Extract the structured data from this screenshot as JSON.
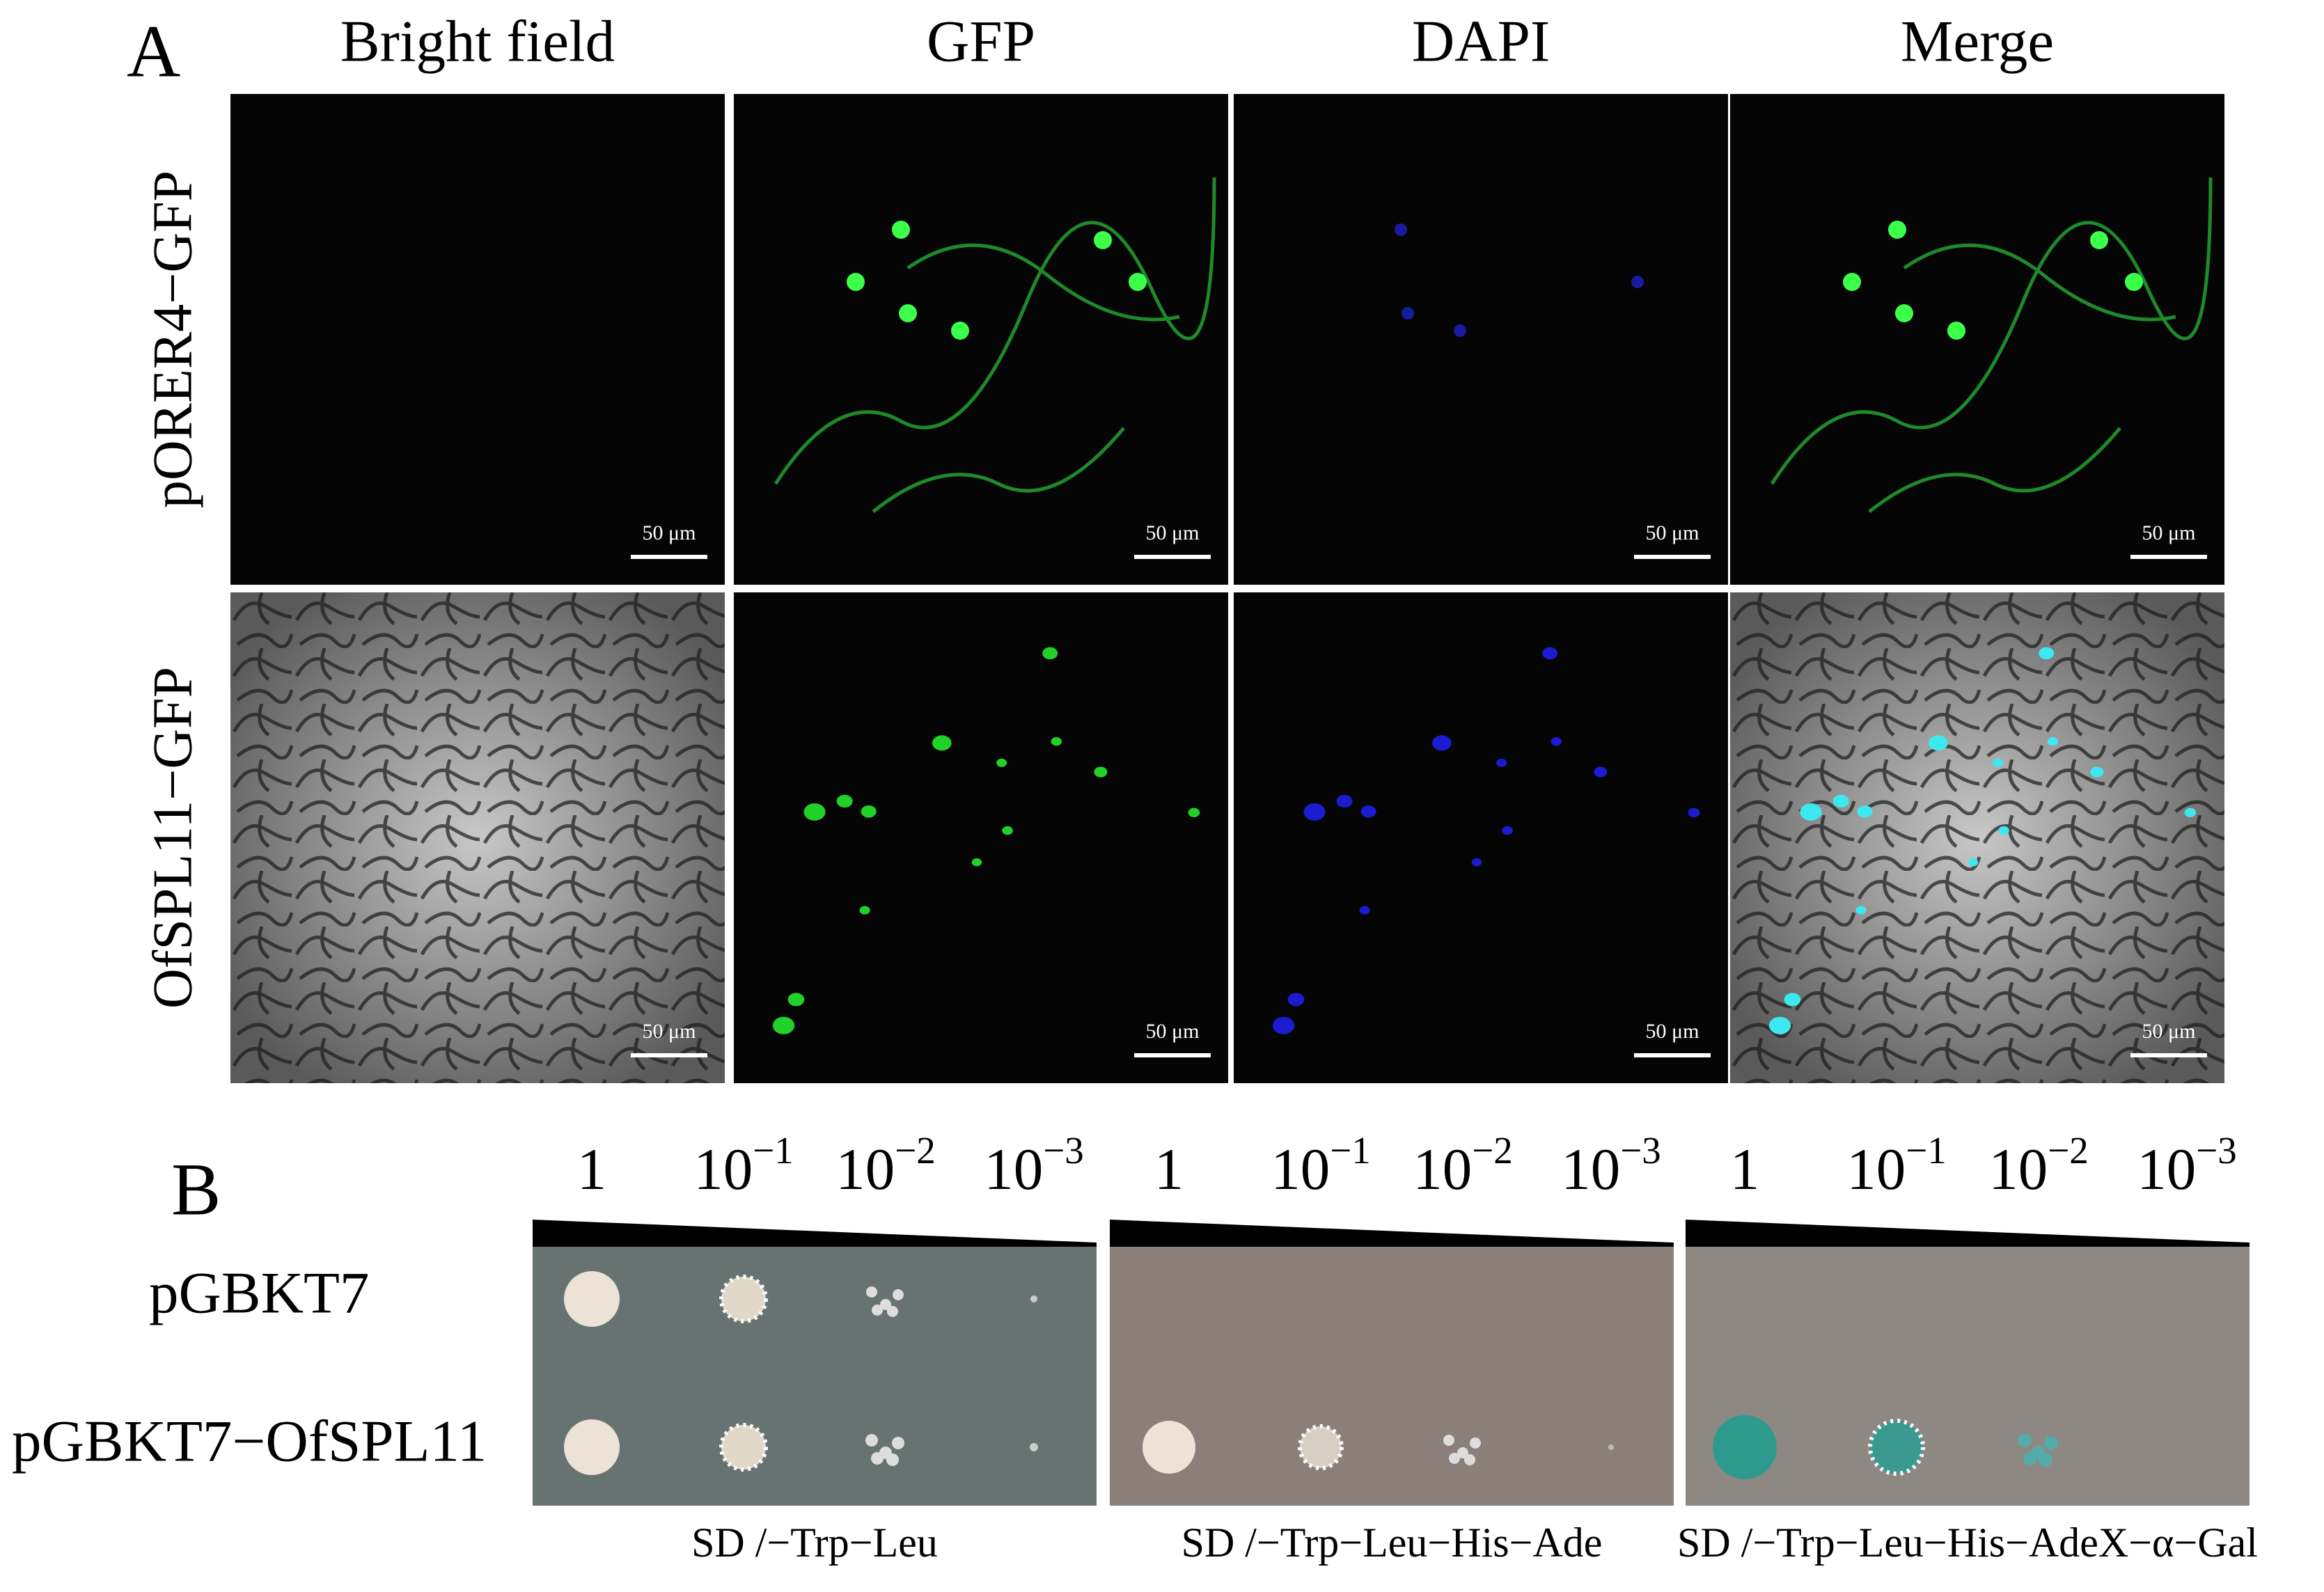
{
  "panel_a": {
    "label": "A",
    "columns": [
      "Bright field",
      "GFP",
      "DAPI",
      "Merge"
    ],
    "rows": [
      "pORER4−GFP",
      "OfSPL11−GFP"
    ],
    "scale_bar": "50 μm"
  },
  "panel_b": {
    "label": "B",
    "dilutions": [
      {
        "base": "1"
      },
      {
        "base": "10",
        "exponent": "−1"
      },
      {
        "base": "10",
        "exponent": "−2"
      },
      {
        "base": "10",
        "exponent": "−3"
      }
    ],
    "rows": [
      "pGBKT7",
      "pGBKT7−OfSPL11"
    ],
    "media": [
      "SD /−Trp−Leu",
      "SD /−Trp−Leu−His−Ade",
      "SD /−Trp−Leu−His−AdeX−α−Gal"
    ]
  }
}
